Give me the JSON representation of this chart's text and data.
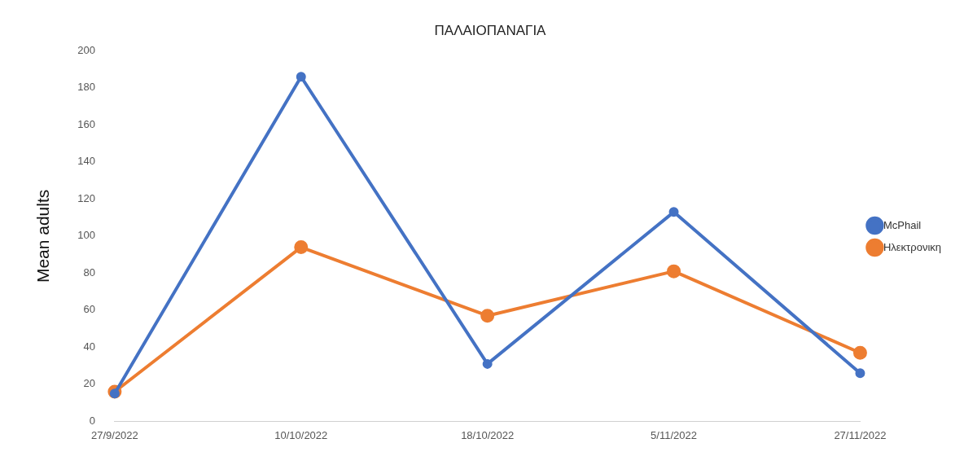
{
  "chart_data": {
    "type": "line",
    "title": "ΠΑΛΑΙΟΠΑΝΑΓΙΑ",
    "ylabel": "Mean adults",
    "categories": [
      "27/9/2022",
      "10/10/2022",
      "18/10/2022",
      "5/11/2022",
      "27/11/2022"
    ],
    "series": [
      {
        "name": "McPhail",
        "color": "#4472c4",
        "values": [
          15,
          186,
          31,
          113,
          26
        ]
      },
      {
        "name": "Ηλεκτρονικη",
        "color": "#ed7d31",
        "values": [
          16,
          94,
          57,
          81,
          37
        ]
      }
    ],
    "ylim": [
      0,
      200
    ],
    "yticks": [
      0,
      20,
      40,
      60,
      80,
      100,
      120,
      140,
      160,
      180,
      200
    ],
    "grid": false,
    "legend": "right",
    "marker": "circle",
    "line_style": "solid"
  }
}
